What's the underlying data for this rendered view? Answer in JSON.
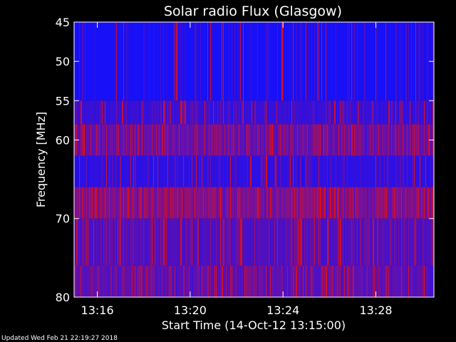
{
  "chart_data": {
    "type": "heatmap",
    "title": "Solar radio Flux (Glasgow)",
    "xlabel": "Start Time (14-Oct-12 13:15:00)",
    "ylabel": "Frequency [MHz]",
    "x_ticks": [
      "13:16",
      "13:20",
      "13:24",
      "13:28"
    ],
    "y_ticks": [
      "45",
      "50",
      "55",
      "60",
      "70",
      "80"
    ],
    "x_range": [
      "13:15:00",
      "13:30:30"
    ],
    "y_range": [
      45,
      80
    ],
    "colormap": [
      "#1010ff",
      "#7010a0",
      "#e01010"
    ],
    "bands": [
      {
        "freq_from": 45,
        "freq_to": 55,
        "level": 0.04
      },
      {
        "freq_from": 55,
        "freq_to": 58,
        "level": 0.22
      },
      {
        "freq_from": 58,
        "freq_to": 62,
        "level": 0.48
      },
      {
        "freq_from": 62,
        "freq_to": 66,
        "level": 0.16
      },
      {
        "freq_from": 66,
        "freq_to": 70,
        "level": 0.62
      },
      {
        "freq_from": 70,
        "freq_to": 76,
        "level": 0.34
      },
      {
        "freq_from": 76,
        "freq_to": 80,
        "level": 0.42
      }
    ]
  },
  "footer": {
    "updated": "Updated Wed Feb 21 22:19:27 2018"
  }
}
